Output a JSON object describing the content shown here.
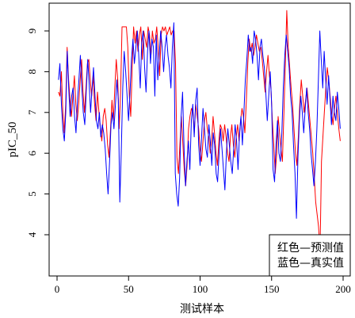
{
  "chart_data": {
    "type": "line",
    "title": "",
    "xlabel": "测试样本",
    "ylabel": "pIC_50",
    "xlim": [
      0,
      200
    ],
    "ylim": [
      3.6,
      9.6
    ],
    "xticks": [
      "0",
      "50",
      "100",
      "150",
      "200"
    ],
    "yticks": [
      "4",
      "5",
      "6",
      "7",
      "8",
      "9"
    ],
    "grid": false,
    "legend_position": "bottom-right",
    "legend": [
      "红色—预测值",
      "蓝色—真实值"
    ],
    "series": [
      {
        "role": "predicted",
        "color": "#ff0000",
        "values": [
          7.5,
          7.4,
          8.0,
          7.0,
          6.5,
          7.2,
          8.6,
          7.8,
          7.3,
          6.9,
          7.4,
          7.9,
          7.2,
          6.8,
          7.2,
          7.8,
          8.3,
          7.5,
          7.0,
          7.6,
          8.2,
          8.3,
          7.8,
          7.4,
          7.9,
          7.2,
          6.8,
          7.5,
          7.0,
          6.6,
          6.3,
          6.9,
          7.1,
          6.8,
          6.2,
          5.9,
          6.6,
          7.3,
          6.8,
          7.6,
          8.3,
          7.8,
          6.6,
          7.5,
          9.1,
          9.1,
          9.1,
          9.1,
          8.6,
          7.4,
          6.9,
          8.1,
          9.1,
          8.7,
          9.0,
          8.5,
          8.9,
          9.1,
          8.3,
          9.0,
          8.8,
          8.6,
          9.1,
          8.9,
          8.4,
          9.0,
          8.7,
          8.8,
          9.1,
          8.6,
          7.9,
          8.9,
          9.1,
          9.0,
          9.1,
          8.9,
          9.0,
          9.1,
          8.9,
          9.0,
          9.0,
          8.2,
          5.9,
          5.5,
          6.2,
          6.9,
          6.3,
          5.6,
          5.2,
          5.7,
          6.6,
          6.9,
          7.1,
          7.0,
          6.5,
          7.2,
          6.9,
          6.6,
          6.1,
          5.8,
          6.3,
          6.8,
          7.0,
          6.6,
          6.4,
          6.0,
          6.3,
          6.9,
          6.5,
          6.0,
          5.7,
          6.3,
          6.7,
          6.6,
          6.3,
          6.7,
          6.4,
          6.0,
          5.8,
          6.4,
          6.7,
          6.2,
          5.9,
          6.4,
          6.7,
          6.3,
          6.8,
          7.1,
          6.9,
          6.5,
          7.3,
          8.2,
          8.8,
          8.5,
          8.7,
          8.4,
          8.6,
          8.9,
          8.7,
          8.5,
          8.6,
          8.3,
          7.9,
          7.5,
          8.0,
          8.4,
          7.9,
          7.6,
          6.8,
          6.2,
          5.5,
          6.0,
          6.9,
          6.5,
          6.1,
          5.8,
          7.0,
          8.2,
          9.5,
          8.6,
          8.1,
          7.6,
          7.2,
          6.6,
          6.0,
          5.7,
          6.4,
          7.2,
          7.8,
          7.4,
          7.0,
          7.3,
          7.6,
          7.2,
          6.8,
          6.4,
          6.0,
          5.4,
          4.8,
          4.5,
          4.2,
          3.6,
          5.8,
          6.4,
          7.0,
          7.6,
          8.1,
          7.8,
          7.4,
          7.0,
          6.7,
          7.1,
          7.4,
          7.0,
          6.6,
          6.3
        ]
      },
      {
        "role": "actual",
        "color": "#0000ff",
        "values": [
          7.8,
          8.2,
          7.2,
          6.6,
          6.3,
          7.0,
          8.5,
          7.6,
          6.9,
          7.4,
          7.6,
          6.9,
          6.5,
          7.3,
          7.8,
          8.4,
          7.6,
          7.0,
          6.7,
          7.5,
          8.3,
          7.7,
          7.0,
          7.6,
          8.1,
          7.4,
          6.8,
          6.6,
          7.0,
          6.4,
          6.7,
          6.5,
          6.1,
          5.5,
          5.0,
          5.8,
          6.7,
          7.0,
          6.6,
          7.2,
          7.8,
          7.3,
          4.8,
          6.0,
          7.6,
          8.5,
          8.0,
          7.4,
          6.8,
          7.5,
          8.3,
          8.8,
          8.2,
          8.6,
          9.0,
          8.4,
          7.6,
          8.7,
          9.0,
          8.1,
          7.5,
          8.5,
          9.0,
          8.2,
          8.8,
          8.6,
          7.4,
          8.9,
          7.8,
          8.4,
          9.0,
          8.6,
          8.0,
          8.6,
          8.9,
          8.4,
          8.1,
          7.6,
          8.6,
          9.2,
          5.5,
          5.0,
          4.7,
          5.4,
          6.9,
          7.5,
          6.1,
          5.2,
          5.8,
          6.3,
          5.6,
          6.8,
          7.2,
          6.4,
          7.3,
          7.6,
          6.2,
          5.7,
          6.4,
          7.1,
          6.6,
          6.1,
          5.9,
          6.7,
          6.3,
          5.7,
          6.5,
          6.2,
          5.5,
          5.3,
          6.0,
          6.6,
          6.1,
          5.6,
          5.1,
          6.0,
          6.6,
          6.2,
          5.8,
          5.5,
          6.1,
          6.7,
          6.3,
          5.6,
          6.5,
          6.9,
          6.2,
          7.0,
          7.8,
          8.3,
          8.9,
          8.5,
          8.6,
          8.2,
          9.0,
          8.8,
          8.4,
          7.8,
          8.6,
          8.8,
          8.4,
          8.1,
          7.5,
          6.8,
          7.4,
          8.0,
          7.2,
          5.6,
          5.3,
          6.2,
          6.8,
          6.0,
          5.8,
          6.5,
          7.6,
          8.4,
          8.9,
          8.5,
          8.1,
          7.4,
          7.0,
          6.2,
          5.5,
          4.4,
          5.9,
          6.8,
          7.4,
          7.0,
          6.5,
          7.1,
          7.6,
          7.0,
          6.6,
          6.0,
          5.6,
          5.2,
          5.8,
          6.6,
          7.8,
          9.0,
          8.3,
          7.6,
          8.5,
          7.8,
          7.2,
          7.9,
          7.3,
          6.7,
          7.4,
          7.0,
          6.8,
          7.5,
          7.1,
          6.6
        ]
      }
    ]
  }
}
